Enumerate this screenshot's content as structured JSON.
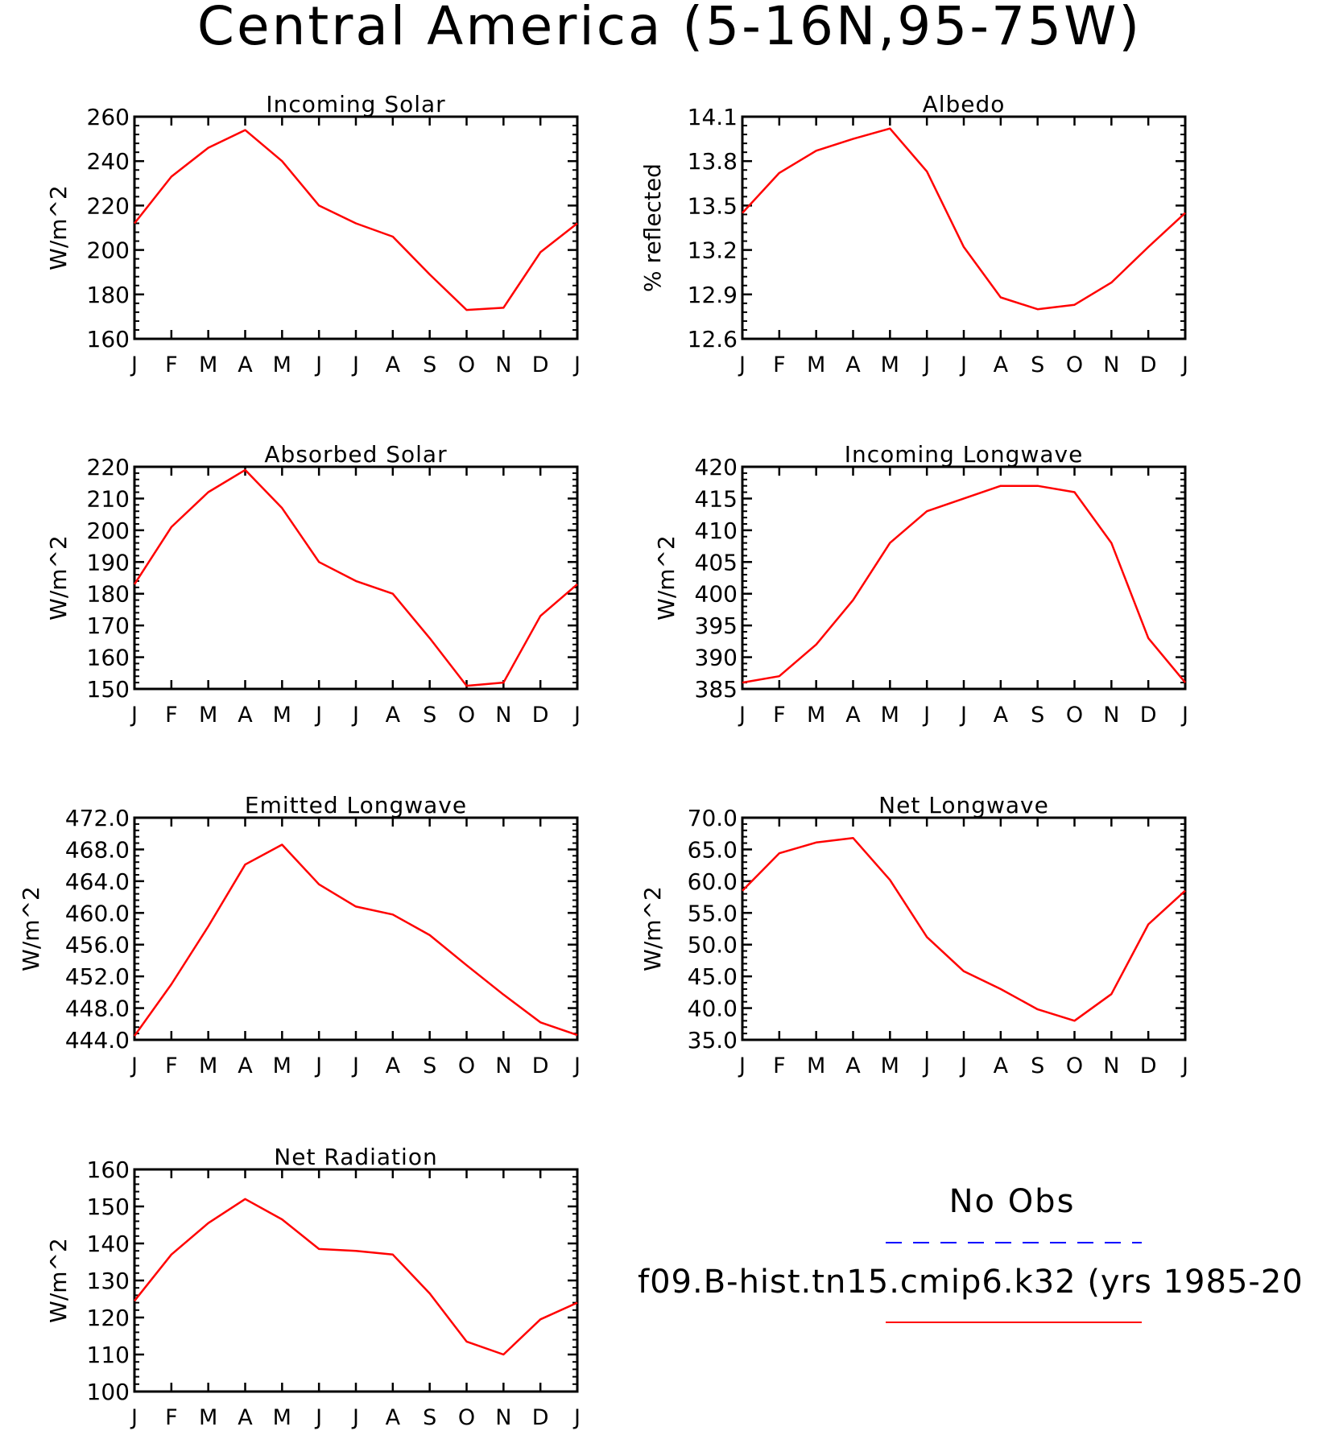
{
  "title": "Central America (5-16N,95-75W)",
  "colors": {
    "model": "#ff0000",
    "obs": "#0000ff",
    "axis": "#000000"
  },
  "legend": {
    "obs_label": "No Obs",
    "model_label": "f09.B-hist.tn15.cmip6.k32 (yrs 1985-20"
  },
  "chart_data": [
    {
      "type": "line",
      "title": "Incoming Solar",
      "ylabel": "W/m^2",
      "ylim": [
        160,
        260
      ],
      "yticks": [
        "160",
        "180",
        "200",
        "220",
        "240",
        "260"
      ],
      "categories": [
        "J",
        "F",
        "M",
        "A",
        "M",
        "J",
        "J",
        "A",
        "S",
        "O",
        "N",
        "D",
        "J"
      ],
      "series": [
        {
          "values": [
            212,
            233,
            246,
            254,
            240,
            220,
            212,
            206,
            189,
            173,
            174,
            199,
            212
          ]
        }
      ]
    },
    {
      "type": "line",
      "title": "Albedo",
      "ylabel": "% reflected",
      "ylim": [
        12.6,
        14.1
      ],
      "yticks": [
        "12.6",
        "12.9",
        "13.2",
        "13.5",
        "13.8",
        "14.1"
      ],
      "categories": [
        "J",
        "F",
        "M",
        "A",
        "M",
        "J",
        "J",
        "A",
        "S",
        "O",
        "N",
        "D",
        "J"
      ],
      "series": [
        {
          "values": [
            13.45,
            13.72,
            13.87,
            13.95,
            14.02,
            13.73,
            13.22,
            12.88,
            12.8,
            12.83,
            12.98,
            13.22,
            13.45
          ]
        }
      ]
    },
    {
      "type": "line",
      "title": "Absorbed Solar",
      "ylabel": "W/m^2",
      "ylim": [
        150,
        220
      ],
      "yticks": [
        "150",
        "160",
        "170",
        "180",
        "190",
        "200",
        "210",
        "220"
      ],
      "categories": [
        "J",
        "F",
        "M",
        "A",
        "M",
        "J",
        "J",
        "A",
        "S",
        "O",
        "N",
        "D",
        "J"
      ],
      "series": [
        {
          "values": [
            183,
            201,
            212,
            219,
            207,
            190,
            184,
            180,
            166,
            151,
            152,
            173,
            183
          ]
        }
      ]
    },
    {
      "type": "line",
      "title": "Incoming Longwave",
      "ylabel": "W/m^2",
      "ylim": [
        385,
        420
      ],
      "yticks": [
        "385",
        "390",
        "395",
        "400",
        "405",
        "410",
        "415",
        "420"
      ],
      "categories": [
        "J",
        "F",
        "M",
        "A",
        "M",
        "J",
        "J",
        "A",
        "S",
        "O",
        "N",
        "D",
        "J"
      ],
      "series": [
        {
          "values": [
            386,
            387,
            392,
            399,
            408,
            413,
            415,
            417,
            417,
            416,
            408,
            393,
            386
          ]
        }
      ]
    },
    {
      "type": "line",
      "title": "Emitted Longwave",
      "ylabel": "W/m^2",
      "ylim": [
        444,
        472
      ],
      "yticks": [
        "444.0",
        "448.0",
        "452.0",
        "456.0",
        "460.0",
        "464.0",
        "468.0",
        "472.0"
      ],
      "categories": [
        "J",
        "F",
        "M",
        "A",
        "M",
        "J",
        "J",
        "A",
        "S",
        "O",
        "N",
        "D",
        "J"
      ],
      "series": [
        {
          "values": [
            444.5,
            451.0,
            458.3,
            466.1,
            468.6,
            463.6,
            460.8,
            459.8,
            457.2,
            453.4,
            449.7,
            446.2,
            444.6
          ]
        }
      ]
    },
    {
      "type": "line",
      "title": "Net Longwave",
      "ylabel": "W/m^2",
      "ylim": [
        35,
        70
      ],
      "yticks": [
        "35.0",
        "40.0",
        "45.0",
        "50.0",
        "55.0",
        "60.0",
        "65.0",
        "70.0"
      ],
      "categories": [
        "J",
        "F",
        "M",
        "A",
        "M",
        "J",
        "J",
        "A",
        "S",
        "O",
        "N",
        "D",
        "J"
      ],
      "series": [
        {
          "values": [
            58.5,
            64.4,
            66.1,
            66.8,
            60.2,
            51.2,
            45.8,
            43.0,
            39.8,
            38.0,
            42.2,
            53.2,
            58.5
          ]
        }
      ]
    },
    {
      "type": "line",
      "title": "Net Radiation",
      "ylabel": "W/m^2",
      "ylim": [
        100,
        160
      ],
      "yticks": [
        "100",
        "110",
        "120",
        "130",
        "140",
        "150",
        "160"
      ],
      "categories": [
        "J",
        "F",
        "M",
        "A",
        "M",
        "J",
        "J",
        "A",
        "S",
        "O",
        "N",
        "D",
        "J"
      ],
      "series": [
        {
          "values": [
            124.5,
            137,
            145.5,
            152,
            146.5,
            138.5,
            138,
            137,
            126.5,
            113.5,
            110,
            119.5,
            124
          ]
        }
      ]
    }
  ]
}
